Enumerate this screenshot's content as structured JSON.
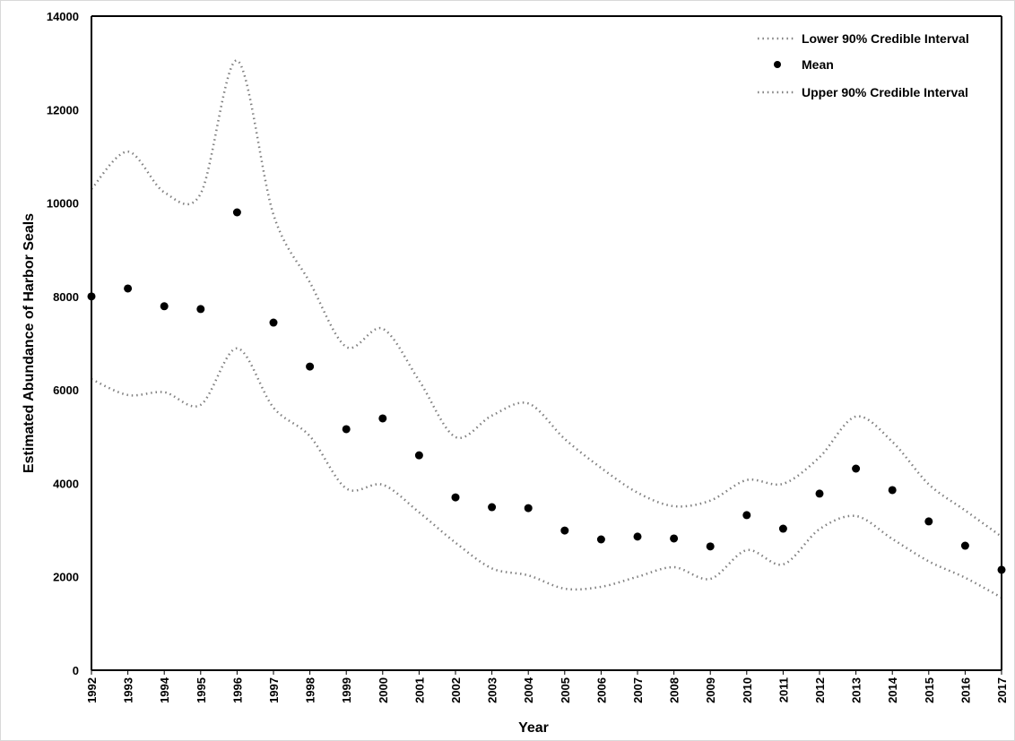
{
  "chart_data": {
    "type": "line",
    "title": "",
    "xlabel": "Year",
    "ylabel": "Estimated Abundance of Harbor Seals",
    "ylim": [
      0,
      14000
    ],
    "yticks": [
      0,
      2000,
      4000,
      6000,
      8000,
      10000,
      12000,
      14000
    ],
    "grid": false,
    "legend_position": "top-right",
    "categories": [
      "1992",
      "1993",
      "1994",
      "1995",
      "1996",
      "1997",
      "1998",
      "1999",
      "2000",
      "2001",
      "2002",
      "2003",
      "2004",
      "2005",
      "2006",
      "2007",
      "2008",
      "2009",
      "2010",
      "2011",
      "2012",
      "2013",
      "2014",
      "2015",
      "2016",
      "2017"
    ],
    "series": [
      {
        "name": "Lower 90% Credible Interval",
        "style": "dotted-line",
        "color": "#808080",
        "values": [
          6230,
          5890,
          5950,
          5680,
          6890,
          5620,
          5010,
          3890,
          3970,
          3380,
          2730,
          2180,
          2030,
          1745,
          1785,
          2000,
          2205,
          1955,
          2570,
          2265,
          3020,
          3300,
          2810,
          2330,
          1980,
          1555
        ]
      },
      {
        "name": "Mean",
        "style": "marker",
        "color": "#000000",
        "values": [
          8000,
          8170,
          7790,
          7730,
          9800,
          7440,
          6500,
          5160,
          5390,
          4600,
          3700,
          3490,
          3470,
          2990,
          2800,
          2860,
          2820,
          2650,
          3320,
          3030,
          3780,
          4315,
          3855,
          3185,
          2665,
          2150
        ]
      },
      {
        "name": "Upper 90% Credible Interval",
        "style": "dotted-line",
        "color": "#808080",
        "values": [
          10300,
          11100,
          10230,
          10200,
          13050,
          9750,
          8300,
          6920,
          7310,
          6200,
          4990,
          5450,
          5710,
          4950,
          4330,
          3800,
          3510,
          3630,
          4070,
          3990,
          4560,
          5430,
          4890,
          3980,
          3420,
          2860
        ]
      }
    ]
  }
}
